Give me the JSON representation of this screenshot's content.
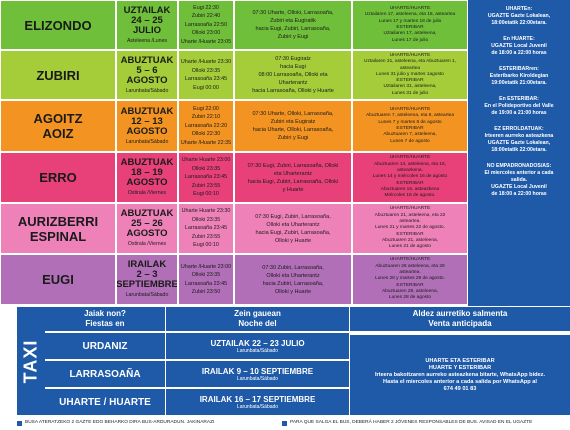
{
  "rows": [
    {
      "name": "ELIZONDO",
      "color": "#6fbf3b",
      "dates": "UZTAILAK\n24 – 25\nJULIO",
      "day": "Asteleena /Lunes",
      "sched": [
        "Eugi 22:30",
        "Zubiri 22:40",
        "Larrasoaña 22:50",
        "Olloki 23:00",
        "Uharte /Huarte 23:05"
      ],
      "route": [
        "07:30 Uharte, Olloki, Larrasoaña,",
        "Zubiri eta Eugiratik",
        "hacia Eugi, Zubiri, Larrasoaña,",
        "Zubiri y Eugi"
      ],
      "stops": [
        "UHARTE/HUARTE",
        "Uztailaren 17, asteleena, eta 18, asteartea",
        "Lunes 17 y martes 18 de julio",
        "ESTERIBAR",
        "Uztailaren 17, asteleena,",
        "Lunes 17 de julio"
      ]
    },
    {
      "name": "ZUBIRI",
      "color": "#a5cd3a",
      "dates": "ABUZTUAK\n5 – 6\nAGOSTO",
      "day": "Larunbata/Sábado",
      "sched": [
        "Uharte /Huarte 23:30",
        "Olloki 23:35",
        "Larrasoaña 23:45",
        "Eugi 00:00"
      ],
      "route": [
        "07:30 Eugiratz",
        "hacia Eugi",
        "08:00 Larrasoaña, Olloki eta",
        "Uharterantz",
        "hacia Larrasoaña, Olloki y Huarte"
      ],
      "stops": [
        "UHARTE/HUARTE",
        "Uztailaren 31, asteleena, eta Abuztuaren 1,",
        "asteartea",
        "Lunes 31 julio y martes 1agosto",
        "ESTERIBAR",
        "Uztailaren 31, asteleena,",
        "Lunes 31 de julio"
      ]
    },
    {
      "name": "AGOITZ\nAOIZ",
      "color": "#f39422",
      "dates": "ABUZTUAK\n12 – 13\nAGOSTO",
      "day": "Larunbata/Sábado",
      "sched": [
        "Eugi 22:00",
        "Zubiri 22:10",
        "Larrasoaña 22:20",
        "Olloki 22:30",
        "Uharte /Huarte 22:35"
      ],
      "route": [
        "07:30 Uharte, Olloki, Larrasoaña,",
        "Zubiri eta Eugiratz",
        "hacia Uharte, Olloki, Larrasoaña,",
        "Zubiri y Eugi"
      ],
      "stops": [
        "UHARTE/HUARTE",
        "Abuztuaren 7, asteleena, eta 8, asteartea",
        "Lunes 7 y martes 8 de agosto",
        "ESTERIBAR",
        "Abuztuaren 7, asteleena,",
        "Lunes 7 de agosto"
      ]
    },
    {
      "name": "ERRO",
      "color": "#e8417a",
      "dates": "ABUZTUAK\n18 – 19\nAGOSTO",
      "day": "Ostirala /Viernes",
      "sched": [
        "Uharte Huarte 23:00",
        "Olloki 23:35",
        "Larrasoaña 23:45",
        "Zubiri 23:55",
        "Eugi 00:10"
      ],
      "route": [
        "07:30 Eugi, Zubiri, Larrasoaña, Olloki",
        "eta Uharterantz",
        "hacia Eugi, Zubiri, Larrasoaña, Olloki",
        "y Huarte"
      ],
      "stops": [
        "UHARTE/HUARTE",
        "Abuztuaren 14, asteleena, eta 16,",
        "asteazkena.",
        "Lunes 14 y miércoles 16 de agosto",
        "ESTERIBAR",
        "Abuztuaren 16, asteazkena",
        "Miércoles 16 de agosto."
      ]
    },
    {
      "name": "AURIZBERRI\nESPINAL",
      "color": "#ee82b8",
      "dates": "ABUZTUAK\n25 – 26\nAGOSTO",
      "day": "Ostirala /Viernes",
      "sched": [
        "Uharte Huarte 23:30",
        "Olloki 23:35",
        "Larrasoaña 23:45",
        "Zubiri 23:55",
        "Eugi 00:10"
      ],
      "route": [
        "07:30 Eugi, Zubiri, Larrasoaña,",
        "Olloki eta Uharterantz",
        "hacia Eugi, Zubiri, Larrasoaña,",
        "Olloki y Huarte"
      ],
      "stops": [
        "UHARTE/HUARTE",
        "Abuztuaren 21, asteleena, eta 22",
        "asteartea.",
        "Lunes 21 y martes 22 de agosto.",
        "ESTERIBAR",
        "Abuztuaren 21, asteleena,",
        "Lunes 21 de agosto"
      ]
    },
    {
      "name": "EUGI",
      "color": "#b06fb6",
      "dates": "IRAILAK\n2 – 3\nSEPTIEMBRE",
      "day": "Larunbata/Sábado",
      "sched": [
        "Uharte /Huarte 23:00",
        "Olloki 23:35",
        "Larrasoaña 23:45",
        "Zubiri 23:50"
      ],
      "route": [
        "07:30 Zubiri, Larrasoaña,",
        "Olloki eta Uharterantz",
        "hacia Zubiri, Larrasoaña,",
        "Olloki y Huarte"
      ],
      "stops": [
        "UHARTE/HUARTE",
        "Abuztuaren 28 asteleena, eta 29",
        "asteartea.",
        "Lunes 28 y martes 29 de agosto.",
        "ESTERIBAR",
        "Abuztuaren 28, asteleena,",
        "Lunes 28 de agosto"
      ]
    }
  ],
  "right_col": [
    "UHARTEn:\nUGAZTE Gazte Lokalean,\n18:00etatik 22:00etara.",
    "En HUARTE:\nUGAZTE Local Juvenil\nde 18:00 a 22:00 horas",
    "ESTERIBARren:\nEsteribarko Kiroldegian\n19:00etatik 21:00etara.",
    "En ESTERIBAR:\nEn el Polideportivo del Valle\nde 19:00 a 21:00 horas",
    "EZ ERROLDATUAK:\nIrteeren aurreko asteazkena\nUGAZTE Gazte Lokalean,\n18:00etatik 22:00etara.",
    "NO EMPADRONADOS/AS:\nEl miercoles anterior a cada\nsalida.\nUGAZTE Local Juvenil\nde 18:00 a 22:00 horas"
  ],
  "taxi": {
    "label": "TAXI",
    "h1": "Jaiak non?\nFiestas en",
    "h2": "Zein gauean\nNoche del",
    "h3": "Aldez aurretiko salmenta\nVenta anticipada",
    "rows": [
      {
        "name": "URDANIZ",
        "date": "UZTAILAK 22 – 23 JULIO",
        "day": "Larunbata/Sábado"
      },
      {
        "name": "LARRASOAÑA",
        "date": "IRAILAK 9 – 10 SEPTIEMBRE",
        "day": "Larunbata/Sábado"
      },
      {
        "name": "UHARTE / HUARTE",
        "date": "IRAILAK 16 – 17 SEPTIEMBRE",
        "day": "Larunbata/Sábado"
      }
    ],
    "sale": [
      "UHARTE ETA ESTERIBAR",
      "HUARTE Y ESTERIBAR",
      "Irteera bakoitzaren aurreko asteazkena bitarte, WhatsApp bidez.",
      "Hasta el miercoles anterior a cada salida por WhatsApp al",
      "674 49 01 83"
    ]
  },
  "footer": {
    "left": "BUSA ATERATZEKO 2 GAZTE EDO BEHARKO DIRA BUS-ARDURADUN. JAKINARAZI",
    "right": "PARA QUE SALGA EL BUS, DEBERÁ HABER 2 JÓVENES RESPONSABLES DE BUS. AVISAD EN EL UGAZTE"
  }
}
